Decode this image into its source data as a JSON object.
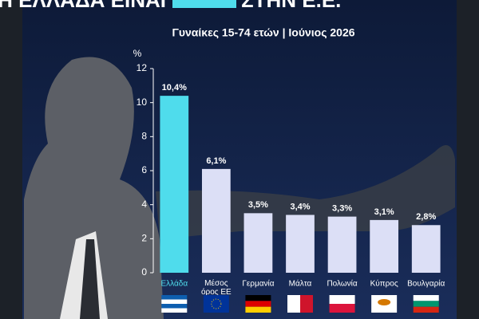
{
  "chart_data": {
    "type": "bar",
    "title_parts": [
      "Η ΕΛΛΑΔΑ ΕΙΝΑΙ",
      "ΣΤΗΝ Ε.Ε."
    ],
    "subtitle": "Γυναίκες 15-74 ετών | Ιούνιος 2026",
    "y_label": "%",
    "categories": [
      "Ελλάδα",
      "Μέσος όρος ΕΕ",
      "Γερμανία",
      "Μάλτα",
      "Πολωνία",
      "Κύπρος",
      "Βουλγαρία"
    ],
    "values": [
      10.4,
      6.1,
      3.5,
      3.4,
      3.3,
      3.1,
      2.8
    ],
    "value_labels": [
      "10,4%",
      "6,1%",
      "3,5%",
      "3,4%",
      "3,3%",
      "3,1%",
      "2,8%"
    ],
    "colors": [
      "#4fdcec",
      "#dcdff6",
      "#dcdff6",
      "#dcdff6",
      "#dcdff6",
      "#dcdff6",
      "#dcdff6"
    ],
    "ylim": [
      0,
      12
    ],
    "yticks": [
      0,
      2,
      4,
      6,
      8,
      10,
      12
    ]
  }
}
